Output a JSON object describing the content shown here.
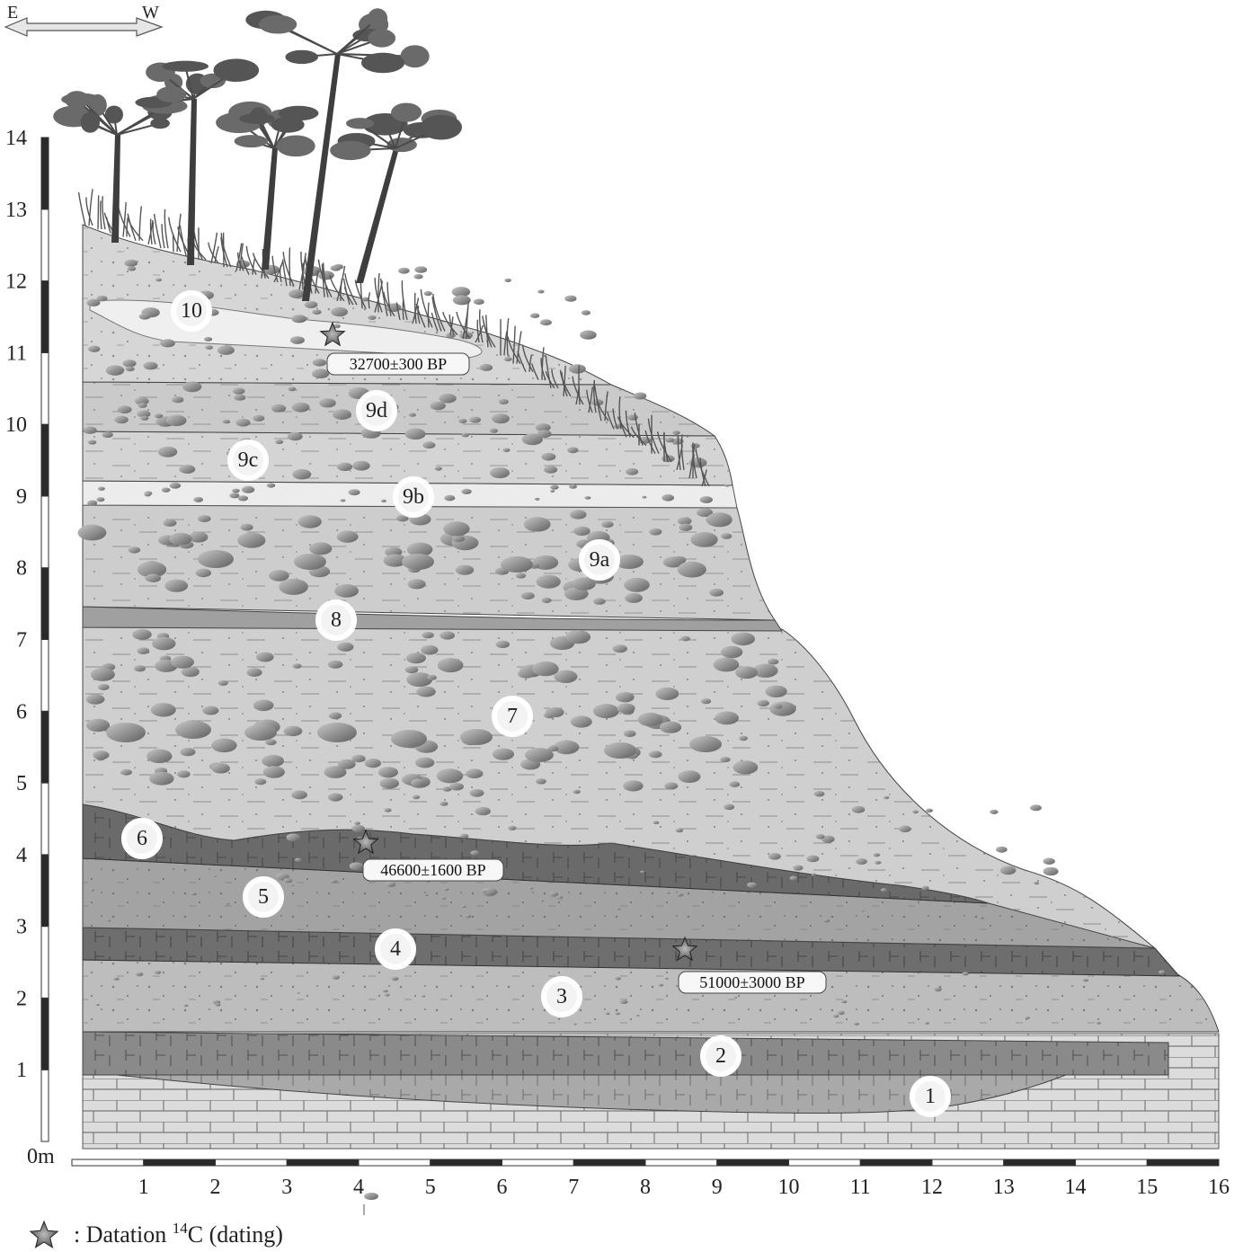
{
  "orientation": {
    "left": "E",
    "right": "W"
  },
  "vertical_axis": {
    "unit_label": "0m",
    "ticks": [
      "1",
      "2",
      "3",
      "4",
      "5",
      "6",
      "7",
      "8",
      "9",
      "10",
      "11",
      "12",
      "13",
      "14"
    ]
  },
  "horizontal_axis": {
    "ticks": [
      "1",
      "2",
      "3",
      "4",
      "5",
      "6",
      "7",
      "8",
      "9",
      "10",
      "11",
      "12",
      "13",
      "14",
      "15",
      "16"
    ]
  },
  "layers": [
    "1",
    "2",
    "3",
    "4",
    "5",
    "6",
    "7",
    "8",
    "9a",
    "9b",
    "9c",
    "9d",
    "10"
  ],
  "dates": [
    "32700±300 BP",
    "46600±1600 BP",
    "51000±3000 BP"
  ],
  "legend": {
    "symbol": "star",
    "text": ":  Datation ",
    "superscript": "14",
    "text_after": "C (dating)"
  },
  "colors": {
    "bedrock": "#d9d9d9",
    "dark_layer": "#6f6f6f",
    "mid_layer": "#a6a6a6",
    "light_layer": "#cfcfcf",
    "pale_layer": "#e8e8e8",
    "pebble": "#8a8a8a",
    "star": "#555555",
    "tree": "#4a4a4a"
  }
}
